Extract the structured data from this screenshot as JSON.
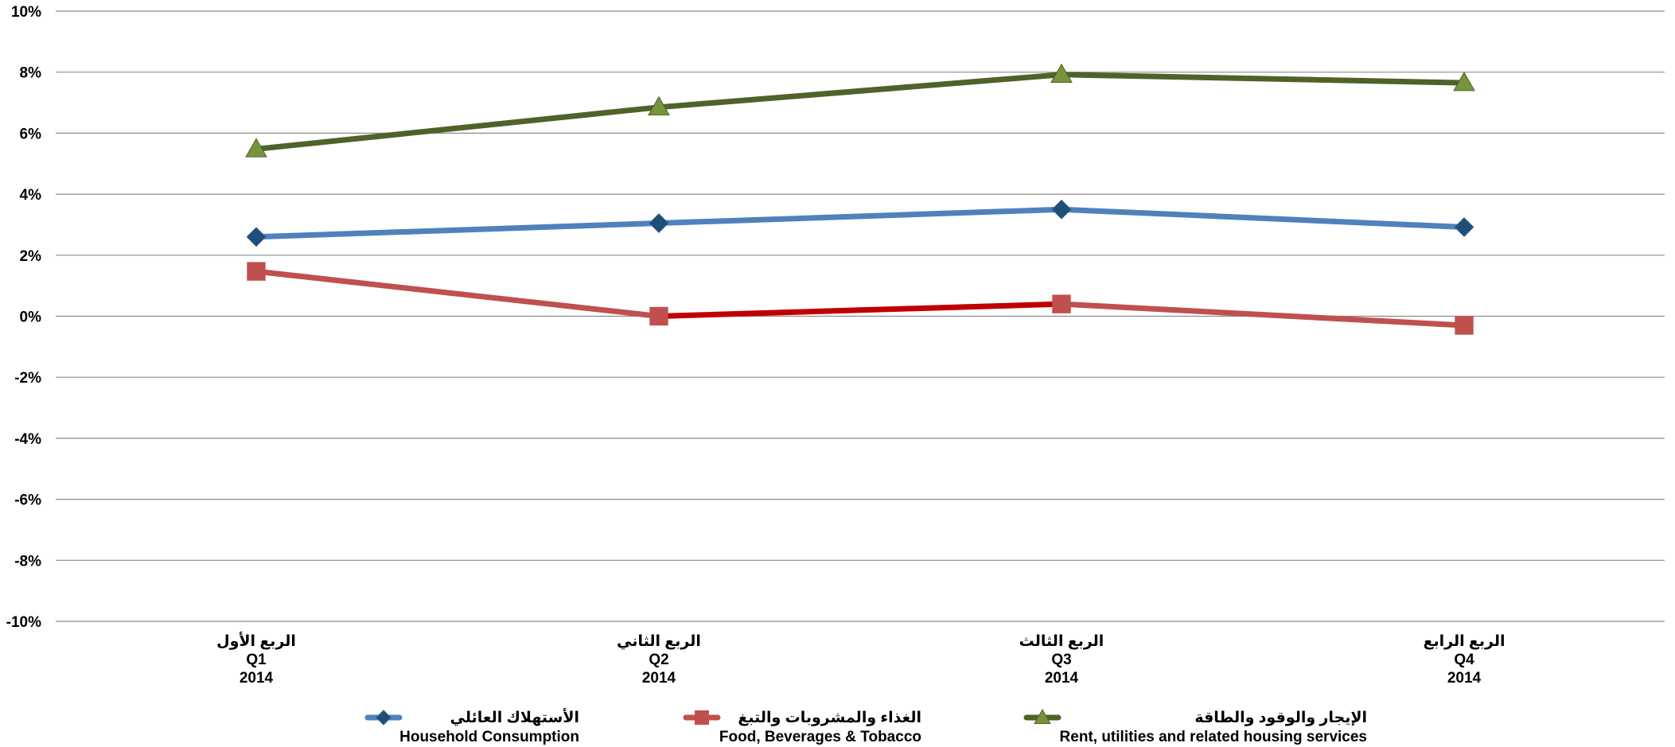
{
  "chart_data": {
    "type": "line",
    "title": "",
    "xlabel": "",
    "ylabel": "",
    "ylim": [
      -10,
      10
    ],
    "y_ticks": [
      "10%",
      "8%",
      "6%",
      "4%",
      "2%",
      "0%",
      "-2%",
      "-4%",
      "-6%",
      "-8%",
      "-10%"
    ],
    "y_tick_values": [
      10,
      8,
      6,
      4,
      2,
      0,
      -2,
      -4,
      -6,
      -8,
      -10
    ],
    "grid": true,
    "legend_position": "bottom",
    "categories": [
      {
        "ar": "الربع الأول",
        "q": "Q1",
        "year": "2014"
      },
      {
        "ar": "الربع الثاني",
        "q": "Q2",
        "year": "2014"
      },
      {
        "ar": "الربع الثالث",
        "q": "Q3",
        "year": "2014"
      },
      {
        "ar": "الربع الرابع",
        "q": "Q4",
        "year": "2014"
      }
    ],
    "series": [
      {
        "name": "Household Consumption",
        "name_ar": "الأستهلاك العائلي",
        "color": "#4f81bd",
        "marker": "diamond",
        "marker_color": "#1f4e79",
        "values": [
          2.6,
          3.05,
          3.5,
          2.92
        ]
      },
      {
        "name": "Food, Beverages & Tobacco",
        "name_ar": "الغذاء والمشروبات والتبغ",
        "color": "#c0504d",
        "marker": "square",
        "marker_color": "#c0504d",
        "values": [
          1.47,
          0.0,
          0.4,
          -0.3
        ]
      },
      {
        "name": "Rent, utilities and related housing services",
        "name_ar": "الإيجار والوقود والطاقة",
        "color": "#4f6228",
        "marker": "triangle",
        "marker_color": "#77933c",
        "values": [
          5.48,
          6.85,
          7.92,
          7.65
        ]
      }
    ]
  }
}
